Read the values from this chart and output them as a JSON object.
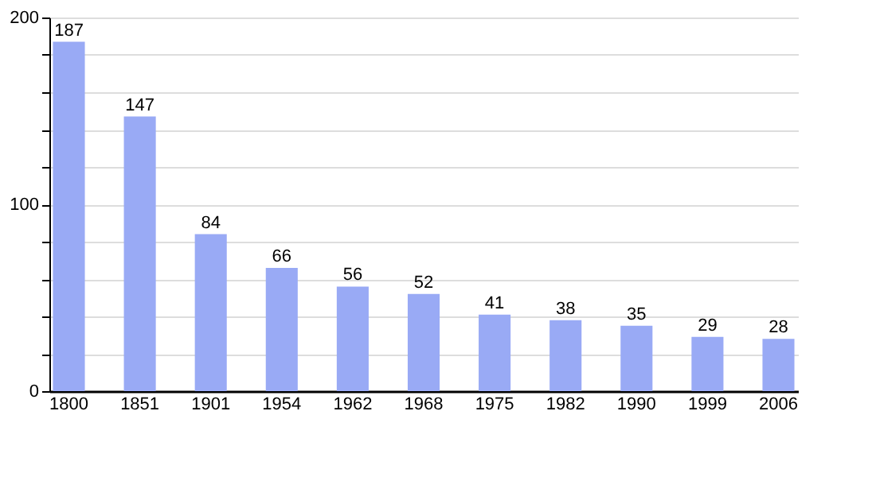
{
  "chart_data": {
    "type": "bar",
    "categories": [
      "1800",
      "1851",
      "1901",
      "1954",
      "1962",
      "1968",
      "1975",
      "1982",
      "1990",
      "1999",
      "2006"
    ],
    "values": [
      187,
      147,
      84,
      66,
      56,
      52,
      41,
      38,
      35,
      29,
      28
    ],
    "color": "#99aaf5",
    "ylim": [
      0,
      200
    ],
    "yticks": [
      0,
      {
        "value": 20,
        "label": null
      },
      {
        "value": 40,
        "label": null
      },
      {
        "value": 60,
        "label": null
      },
      {
        "value": 80,
        "label": null
      },
      100,
      {
        "value": 120,
        "label": null
      },
      {
        "value": 140,
        "label": null
      },
      {
        "value": 160,
        "label": null
      },
      {
        "value": 180,
        "label": null
      },
      200
    ],
    "grid": true,
    "data_labels": true
  }
}
